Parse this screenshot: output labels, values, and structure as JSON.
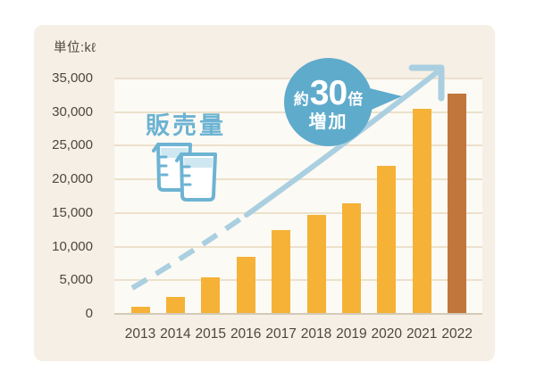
{
  "unit_label": "単位:kℓ",
  "series_label": "販売量",
  "annotation": {
    "prefix": "約",
    "big": "30",
    "suffix": "倍",
    "second_line": "増加"
  },
  "colors": {
    "ink": "#4c473f",
    "panel": "#f6efe5",
    "plot": "#fcfaf4",
    "grid": "#ece1cb",
    "baseline": "#d3c9b7",
    "bar": "#f5b237",
    "bar-highlight": "#c1763c",
    "trend": "#aacfe0",
    "bubble": "#5fabcc",
    "series": "#6db3d3",
    "liquid": "#cfe7f0"
  },
  "chart_data": {
    "type": "bar",
    "title": "販売量",
    "unit": "kℓ",
    "categories": [
      "2013",
      "2014",
      "2015",
      "2016",
      "2017",
      "2018",
      "2019",
      "2020",
      "2021",
      "2022"
    ],
    "values": [
      1100,
      2500,
      5500,
      8500,
      12500,
      14700,
      16400,
      22000,
      30500,
      32700
    ],
    "highlight_last": true,
    "ylim": [
      0,
      35000
    ],
    "ytick_values": [
      0,
      5000,
      10000,
      15000,
      20000,
      25000,
      30000,
      35000
    ],
    "ytick_labels": [
      "0",
      "5,000",
      "10,000",
      "15,000",
      "20,000",
      "25,000",
      "30,000",
      "35,000"
    ],
    "xlabel": "",
    "ylabel": "単位:kℓ",
    "grid": true,
    "legend_position": "none",
    "annotation_text": "約30倍増加",
    "trend": "dashed rising arrow becoming solid, ending in up-right arrowhead"
  }
}
